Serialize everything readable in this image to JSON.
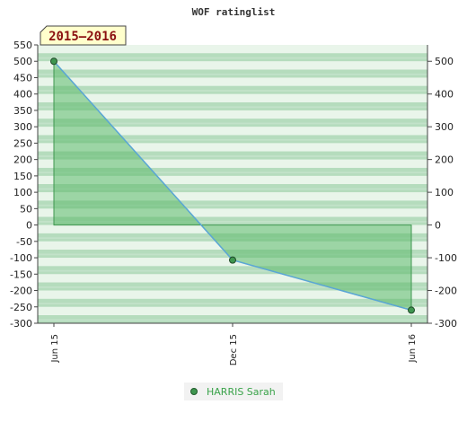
{
  "chart_data": {
    "type": "area",
    "title": "WOF ratinglist",
    "season_label": "2015–2016",
    "x": [
      "Jun 15",
      "Dec 15",
      "Jun 16"
    ],
    "series": [
      {
        "name": "HARRIS Sarah",
        "values": [
          500,
          -107,
          -260
        ]
      }
    ],
    "ylim": [
      -300,
      550
    ],
    "yticks_left": [
      "550",
      "500",
      "450",
      "400",
      "350",
      "300",
      "250",
      "200",
      "150",
      "100",
      "50",
      "0",
      "-50",
      "-100",
      "-150",
      "-200",
      "-250",
      "-300"
    ],
    "yticks_right": [
      "500",
      "400",
      "300",
      "200",
      "100",
      "0",
      "-100",
      "-200",
      "-300"
    ],
    "legend_position": "bottom-center",
    "colors": {
      "stripe_dark": "#b5dcbd",
      "stripe_light": "#e9f5ea",
      "area_fill": "#5cb96b",
      "line": "#5aa6d6",
      "marker": "#3f9650",
      "season_bg": "#ffffcc"
    }
  }
}
